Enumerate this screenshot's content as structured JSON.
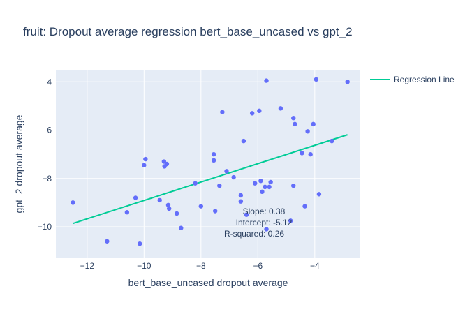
{
  "chart_data": {
    "type": "scatter",
    "title": "fruit: Dropout average regression bert_base_uncased vs gpt_2",
    "xlabel": "bert_base_uncased dropout average",
    "ylabel": "gpt_2 dropout average",
    "xlim": [
      -13.1,
      -2.4
    ],
    "ylim": [
      -11.3,
      -3.5
    ],
    "x_ticks": [
      -12,
      -10,
      -8,
      -6,
      -4
    ],
    "y_ticks": [
      -10,
      -8,
      -6,
      -4
    ],
    "x_tick_labels": [
      "−12",
      "−10",
      "−8",
      "−6",
      "−4"
    ],
    "y_tick_labels": [
      "−10",
      "−8",
      "−6",
      "−4"
    ],
    "grid": true,
    "legend_position": "top-right",
    "colors": {
      "points": "#636efa",
      "line": "#00cc96",
      "plot_bg": "#e5ecf6",
      "grid": "#ffffff"
    },
    "series": [
      {
        "kind": "points",
        "x": [
          -12.5,
          -11.3,
          -10.6,
          -10.3,
          -10.15,
          -10.0,
          -9.95,
          -9.45,
          -9.3,
          -9.28,
          -9.2,
          -9.15,
          -9.12,
          -8.85,
          -8.7,
          -8.2,
          -8.0,
          -7.55,
          -7.55,
          -7.5,
          -7.35,
          -7.25,
          -7.1,
          -6.85,
          -6.6,
          -6.6,
          -6.5,
          -6.4,
          -6.2,
          -6.1,
          -5.95,
          -5.9,
          -5.85,
          -5.75,
          -5.7,
          -5.7,
          -5.6,
          -5.55,
          -5.2,
          -4.85,
          -4.75,
          -4.75,
          -4.7,
          -4.45,
          -4.35,
          -4.25,
          -4.15,
          -4.05,
          -3.95,
          -3.85,
          -3.4,
          -2.85
        ],
        "y": [
          -9.0,
          -10.6,
          -9.4,
          -8.8,
          -10.7,
          -7.45,
          -7.2,
          -8.9,
          -7.3,
          -7.5,
          -7.4,
          -9.1,
          -9.25,
          -9.45,
          -10.05,
          -8.2,
          -9.15,
          -7.0,
          -7.25,
          -9.35,
          -8.3,
          -5.25,
          -7.7,
          -7.95,
          -8.7,
          -8.95,
          -6.45,
          -9.5,
          -5.3,
          -8.2,
          -5.2,
          -8.1,
          -8.55,
          -8.35,
          -10.1,
          -3.95,
          -8.35,
          -8.15,
          -5.1,
          -9.75,
          -5.5,
          -8.3,
          -5.75,
          -6.95,
          -9.15,
          -6.05,
          -7.0,
          -5.75,
          -3.9,
          -8.65,
          -6.45,
          -4.0
        ]
      },
      {
        "kind": "line",
        "name": "Regression Line",
        "x": [
          -12.5,
          -2.85
        ],
        "y": [
          -9.86,
          -6.19
        ]
      }
    ],
    "annotations": [
      "Slope: 0.38",
      "Intercept: -5.12",
      "R-squared: 0.26"
    ]
  }
}
